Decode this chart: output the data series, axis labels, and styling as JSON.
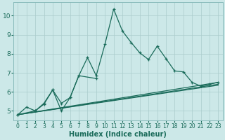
{
  "title": "",
  "xlabel": "Humidex (Indice chaleur)",
  "bg_color": "#cce8e8",
  "line_color": "#1a6b5a",
  "grid_color": "#aacccc",
  "xlim": [
    -0.5,
    23.5
  ],
  "ylim": [
    4.5,
    10.7
  ],
  "yticks": [
    5,
    6,
    7,
    8,
    9,
    10
  ],
  "xticks": [
    0,
    1,
    2,
    3,
    4,
    5,
    6,
    7,
    8,
    9,
    10,
    11,
    12,
    13,
    14,
    15,
    16,
    17,
    18,
    19,
    20,
    21,
    22,
    23
  ],
  "line1_x": [
    0,
    1,
    2,
    3,
    4,
    5,
    6,
    7,
    8,
    9,
    10,
    11,
    12,
    13,
    14,
    15,
    16,
    17,
    18,
    19,
    20,
    21,
    22,
    23
  ],
  "line1_y": [
    4.8,
    5.2,
    5.0,
    5.4,
    6.1,
    5.0,
    5.7,
    6.85,
    7.8,
    6.85,
    8.5,
    10.35,
    9.2,
    8.6,
    8.05,
    7.7,
    8.4,
    7.75,
    7.1,
    7.05,
    6.5,
    6.3,
    6.4,
    6.5
  ],
  "line2_x": [
    0,
    2,
    3,
    4,
    5,
    6,
    7,
    9
  ],
  "line2_y": [
    4.8,
    5.0,
    5.35,
    6.1,
    5.4,
    5.7,
    6.85,
    6.7
  ],
  "line3_x": [
    0,
    23
  ],
  "line3_y": [
    4.8,
    6.4
  ],
  "line4_x": [
    0,
    23
  ],
  "line4_y": [
    4.8,
    6.5
  ],
  "line5_x": [
    0,
    23
  ],
  "line5_y": [
    4.8,
    6.35
  ]
}
